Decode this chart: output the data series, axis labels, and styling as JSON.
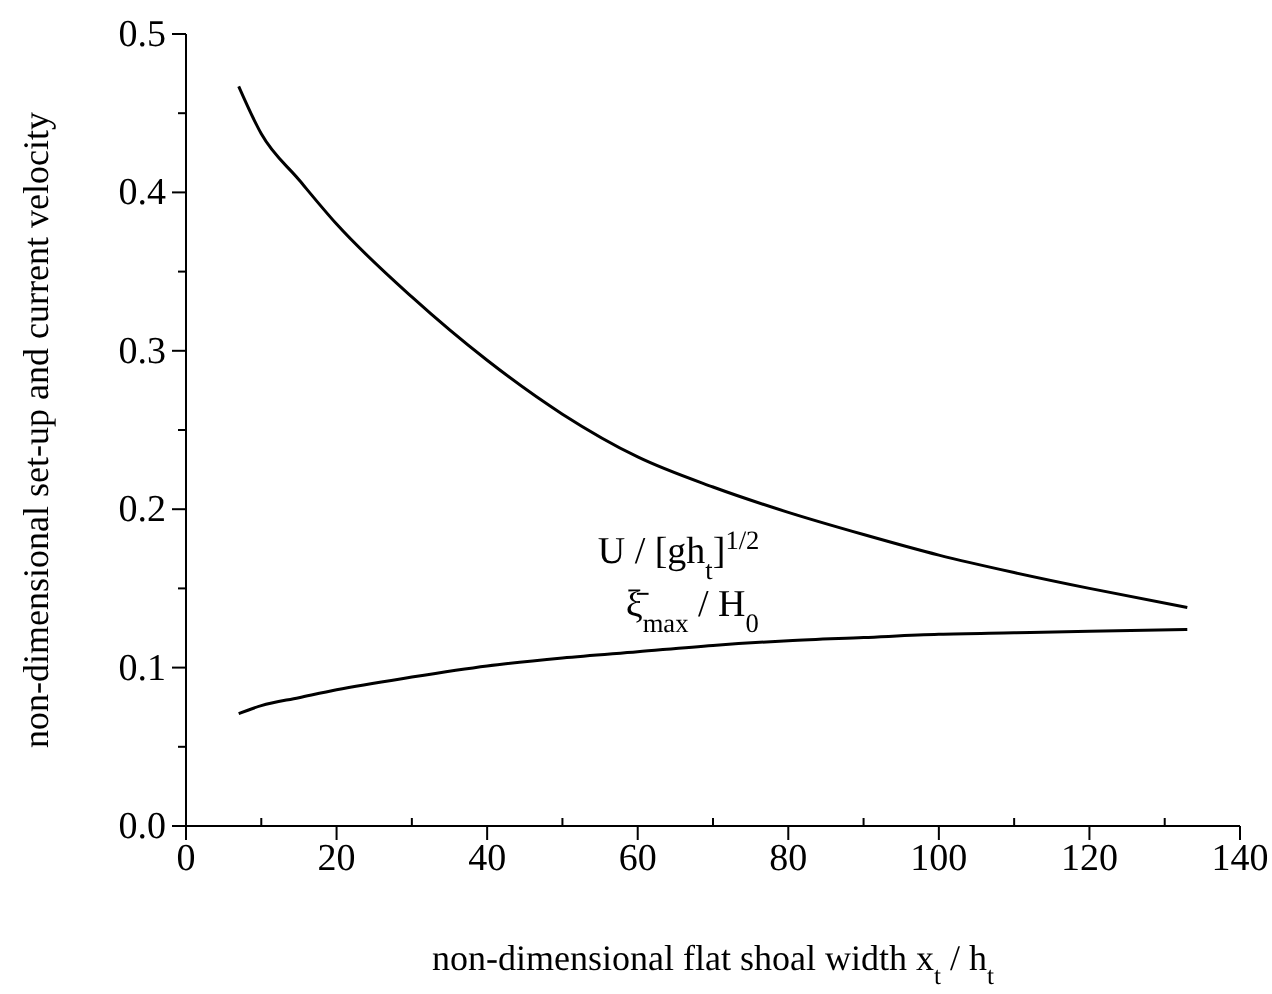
{
  "chart_data": {
    "type": "line",
    "xlabel": "non-dimensional flat shoal width  x$_{t}$ / h$_{t}$",
    "ylabel": "non-dimensional set-up and current velocity",
    "x": [
      7,
      10,
      15,
      20,
      30,
      40,
      50,
      60,
      70,
      80,
      90,
      100,
      110,
      120,
      133
    ],
    "series": [
      {
        "name": "U / [gh$_{t}$]$^{1/2}$",
        "color": "#000000",
        "values": [
          0.467,
          0.437,
          0.408,
          0.38,
          0.334,
          0.294,
          0.26,
          0.233,
          0.214,
          0.198,
          0.184,
          0.171,
          0.16,
          0.15,
          0.138
        ]
      },
      {
        "name": "ξ̄$_{max}$ / H$_{0}$",
        "color": "#000000",
        "values": [
          0.071,
          0.076,
          0.081,
          0.086,
          0.094,
          0.101,
          0.106,
          0.11,
          0.114,
          0.117,
          0.119,
          0.121,
          0.122,
          0.123,
          0.124
        ]
      }
    ],
    "xlim": [
      0,
      140
    ],
    "xticks": [
      0,
      {
        "value": 10,
        "label": null
      },
      20,
      {
        "value": 30,
        "label": null
      },
      40,
      {
        "value": 50,
        "label": null
      },
      60,
      {
        "value": 70,
        "label": null
      },
      80,
      {
        "value": 90,
        "label": null
      },
      100,
      {
        "value": 110,
        "label": null
      },
      120,
      {
        "value": 130,
        "label": null
      },
      140
    ],
    "ylim": [
      0,
      0.5
    ],
    "yticks": [
      {
        "value": 0,
        "label": "0.0"
      },
      {
        "value": 0.05,
        "label": null
      },
      0.1,
      {
        "value": 0.15,
        "label": null
      },
      0.2,
      {
        "value": 0.25,
        "label": null
      },
      0.3,
      {
        "value": 0.35,
        "label": null
      },
      0.4,
      {
        "value": 0.45,
        "label": null
      },
      0.5
    ],
    "grid": false,
    "legend": false,
    "marker": "none",
    "line_style": "solid"
  }
}
